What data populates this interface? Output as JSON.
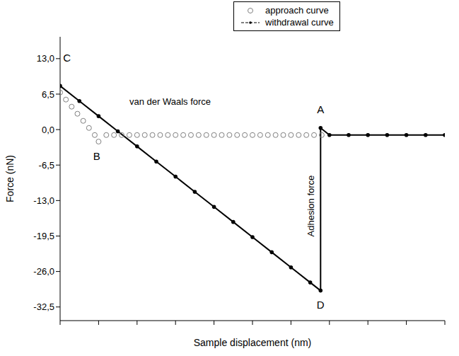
{
  "chart_data": {
    "type": "line",
    "x_label": "Sample displacement (nm)",
    "y_label": "Force (nN)",
    "xlim": [
      0,
      100
    ],
    "xticks": [
      0,
      10,
      20,
      30,
      40,
      50,
      60,
      70,
      80,
      90,
      100
    ],
    "ylim": [
      -35,
      17
    ],
    "yticks": [
      {
        "value": 13,
        "label": "13,0"
      },
      {
        "value": 6.5,
        "label": "6,5"
      },
      {
        "value": 0,
        "label": "0,0"
      },
      {
        "value": -6.5,
        "label": "-6,5"
      },
      {
        "value": -13,
        "label": "-13,0"
      },
      {
        "value": -19.5,
        "label": "-19,5"
      },
      {
        "value": -26,
        "label": "-26,0"
      },
      {
        "value": -32.5,
        "label": "-32,5"
      }
    ],
    "tick_labels": "y",
    "legend": "top",
    "series": [
      {
        "name": "approach curve",
        "type": "scatter",
        "marker": "open circle",
        "color": "#808080",
        "x": [
          0,
          1.5,
          3,
          4.5,
          6,
          7.5,
          9,
          10,
          12,
          14,
          16,
          18,
          20,
          22,
          24,
          26,
          28,
          30,
          32,
          34,
          36,
          38,
          40,
          42,
          44,
          46,
          48,
          50,
          52,
          54,
          56,
          58,
          60,
          62,
          64,
          66,
          68
        ],
        "values": [
          6.8,
          5.5,
          4.2,
          2.9,
          1.6,
          0.3,
          -1.0,
          -2.2,
          -1.0,
          -1.0,
          -1.0,
          -1.0,
          -1.0,
          -1.0,
          -1.0,
          -1.0,
          -1.0,
          -1.0,
          -1.0,
          -1.0,
          -1.0,
          -1.0,
          -1.0,
          -1.0,
          -1.0,
          -1.0,
          -1.0,
          -1.0,
          -1.0,
          -1.0,
          -1.0,
          -1.0,
          -1.0,
          -1.0,
          -1.0,
          -1.0,
          -1.0
        ]
      },
      {
        "name": "withdrawal curve",
        "type": "line",
        "marker": "dot",
        "color": "#000000",
        "x": [
          0,
          5,
          10,
          15,
          20,
          25,
          30,
          35,
          40,
          45,
          50,
          55,
          60,
          65,
          67.7,
          67.7,
          70,
          75,
          80,
          85,
          90,
          95,
          100
        ],
        "values": [
          8.0,
          5.23,
          2.46,
          -0.31,
          -3.08,
          -5.85,
          -8.62,
          -11.39,
          -14.16,
          -16.93,
          -19.7,
          -22.47,
          -25.24,
          -28.01,
          -29.5,
          0.3,
          -1.0,
          -1.0,
          -1.0,
          -1.0,
          -1.0,
          -1.0,
          -1.0
        ]
      }
    ],
    "annotations": [
      {
        "text": "van der Waals force",
        "x": 18,
        "y": 5
      },
      {
        "text": "Adhesion force",
        "x": 65.3,
        "y": -14,
        "orientation": "vertical"
      },
      {
        "text": "A",
        "x": 67.7,
        "y": 3.5
      },
      {
        "text": "B",
        "x": 9.5,
        "y": -5
      },
      {
        "text": "C",
        "x": 1.8,
        "y": 13
      },
      {
        "text": "D",
        "x": 67.7,
        "y": -32.3
      }
    ]
  }
}
